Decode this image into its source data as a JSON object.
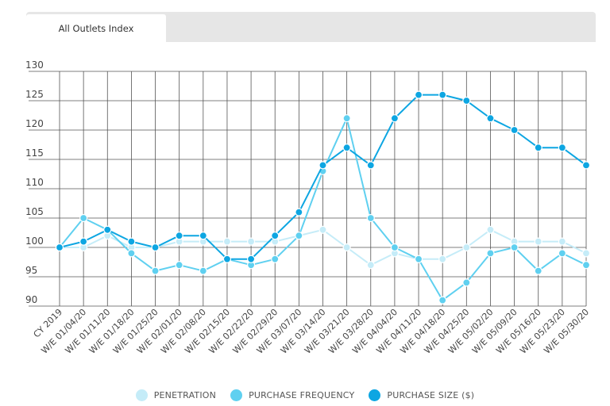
{
  "tabs": [
    {
      "label": "All Outlets Index"
    }
  ],
  "colors": {
    "penetration": "#c5ecf8",
    "purchase_frequency": "#5fd0f0",
    "purchase_size": "#0da6e2",
    "grid": "#555555"
  },
  "legend": [
    {
      "label": "PENETRATION",
      "series": 0
    },
    {
      "label": "PURCHASE FREQUENCY",
      "series": 1
    },
    {
      "label": "PURCHASE SIZE ($)",
      "series": 2
    }
  ],
  "chart_data": {
    "type": "line",
    "title": "",
    "xlabel": "",
    "ylabel": "",
    "ylim": [
      90,
      130
    ],
    "yticks": [
      90,
      95,
      100,
      105,
      110,
      115,
      120,
      125,
      130
    ],
    "grid": true,
    "legend_position": "bottom",
    "categories": [
      "CY 2019",
      "W/E 01/04/20",
      "W/E 01/11/20",
      "W/E 01/18/20",
      "W/E 01/25/20",
      "W/E 02/01/20",
      "W/E 02/08/20",
      "W/E 02/15/20",
      "W/E 02/22/20",
      "W/E 02/29/20",
      "W/E 03/07/20",
      "W/E 03/14/20",
      "W/E 03/21/20",
      "W/E 03/28/20",
      "W/E 04/04/20",
      "W/E 04/11/20",
      "W/E 04/18/20",
      "W/E 04/25/20",
      "W/E 05/02/20",
      "W/E 05/09/20",
      "W/E 05/16/20",
      "W/E 05/23/20",
      "W/E 05/30/20"
    ],
    "series": [
      {
        "name": "PENETRATION",
        "values": [
          100,
          100,
          102,
          100,
          100,
          101,
          101,
          101,
          101,
          101,
          102,
          103,
          100,
          97,
          99,
          98,
          98,
          100,
          103,
          101,
          101,
          101,
          99
        ]
      },
      {
        "name": "PURCHASE FREQUENCY",
        "values": [
          100,
          105,
          103,
          99,
          96,
          97,
          96,
          98,
          97,
          98,
          102,
          113,
          122,
          105,
          100,
          98,
          91,
          94,
          99,
          100,
          96,
          99,
          97
        ]
      },
      {
        "name": "PURCHASE SIZE ($)",
        "values": [
          100,
          101,
          103,
          101,
          100,
          102,
          102,
          98,
          98,
          102,
          106,
          114,
          117,
          114,
          122,
          126,
          126,
          125,
          122,
          120,
          117,
          117,
          114
        ]
      }
    ]
  }
}
